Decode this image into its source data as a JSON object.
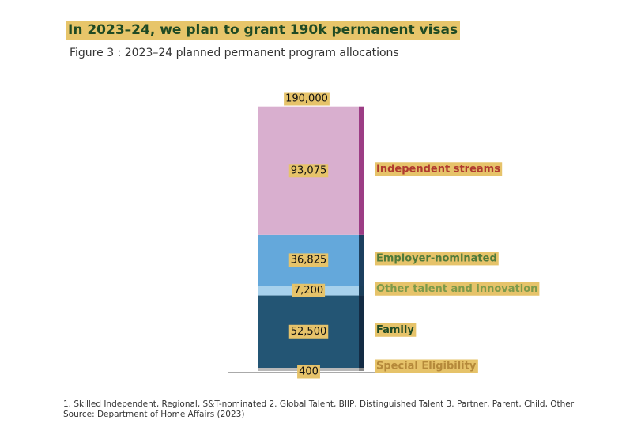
{
  "headline": "In 2023–24, we plan to grant 190k permanent visas",
  "subtitle": "Figure 3 : 2023–24 planned permanent program allocations",
  "chart_data": {
    "type": "bar",
    "stacked": true,
    "total_label": "190,000",
    "total": 190000,
    "series": [
      {
        "name": "Special Eligibility",
        "value": 400,
        "label": "400",
        "color": "#b8b8b8",
        "accent": "#8a8a8a",
        "label_color": "#b5893a"
      },
      {
        "name": "Family",
        "value": 52500,
        "label": "52,500",
        "color": "#235574",
        "accent": "#132b44",
        "label_color": "#1f4a24"
      },
      {
        "name": "Other talent and innovation",
        "value": 7200,
        "label": "7,200",
        "color": "#a7d1ec",
        "accent": "#1a3e5a",
        "label_color": "#7d9a4a"
      },
      {
        "name": "Employer-nominated",
        "value": 36825,
        "label": "36,825",
        "color": "#64a8db",
        "accent": "#1c3f5f",
        "label_color": "#4f7a3a"
      },
      {
        "name": "Independent streams",
        "value": 93075,
        "label": "93,075",
        "color": "#d9afcf",
        "accent": "#9c3d85",
        "label_color": "#b03a2e"
      }
    ]
  },
  "footnotes": {
    "line1": "1. Skilled Independent, Regional, S&T-nominated  2. Global Talent, BIIP, Distinguished Talent  3. Partner, Parent, Child, Other",
    "line2": "Source: Department of Home Affairs (2023)"
  }
}
